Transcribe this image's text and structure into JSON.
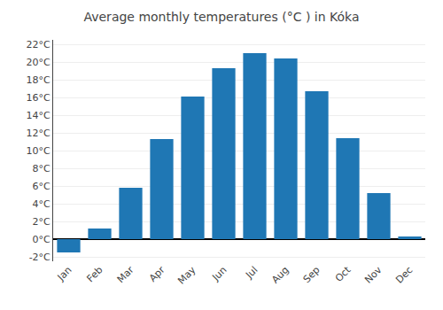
{
  "chart_data": {
    "type": "bar",
    "title": "Average monthly temperatures (°C ) in Kóka",
    "categories": [
      "Jan",
      "Feb",
      "Mar",
      "Apr",
      "May",
      "Jun",
      "Jul",
      "Aug",
      "Sep",
      "Oct",
      "Nov",
      "Dec"
    ],
    "values": [
      -1.5,
      1.2,
      5.8,
      11.3,
      16.1,
      19.3,
      21.0,
      20.4,
      16.7,
      11.4,
      5.2,
      0.3
    ],
    "ylim": [
      -2.5,
      22.5
    ],
    "yticks": [
      {
        "value": -2,
        "label": "-2°C"
      },
      {
        "value": 0,
        "label": "0°C"
      },
      {
        "value": 2,
        "label": "2°C"
      },
      {
        "value": 4,
        "label": "4°C"
      },
      {
        "value": 6,
        "label": "6°C"
      },
      {
        "value": 8,
        "label": "8°C"
      },
      {
        "value": 10,
        "label": "10°C"
      },
      {
        "value": 12,
        "label": "12°C"
      },
      {
        "value": 14,
        "label": "14°C"
      },
      {
        "value": 16,
        "label": "16°C"
      },
      {
        "value": 18,
        "label": "18°C"
      },
      {
        "value": 20,
        "label": "20°C"
      },
      {
        "value": 22,
        "label": "22°C"
      }
    ],
    "grid": true
  }
}
